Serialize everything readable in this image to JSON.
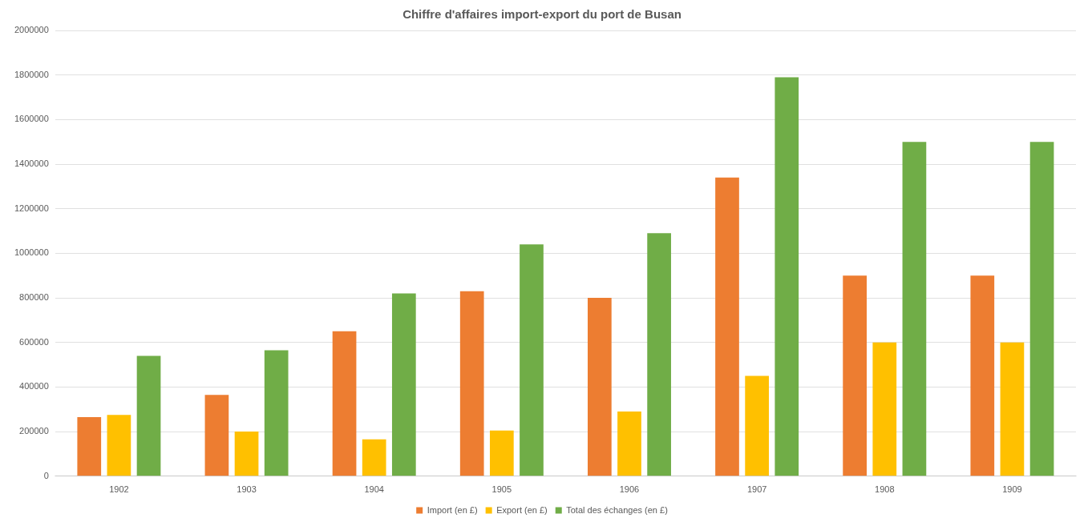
{
  "chart_data": {
    "type": "bar",
    "title": "Chiffre d'affaires import-export du port de Busan",
    "categories": [
      "1902",
      "1903",
      "1904",
      "1905",
      "1906",
      "1907",
      "1908",
      "1909"
    ],
    "series": [
      {
        "name": "Import (en £)",
        "color": "#ed7d31",
        "values": [
          265000,
          365000,
          650000,
          830000,
          800000,
          1340000,
          900000,
          900000
        ]
      },
      {
        "name": "Export (en £)",
        "color": "#ffc000",
        "values": [
          275000,
          200000,
          165000,
          205000,
          290000,
          450000,
          600000,
          600000
        ]
      },
      {
        "name": "Total des échanges (en £)",
        "color": "#70ad47",
        "values": [
          540000,
          565000,
          820000,
          1040000,
          1090000,
          1790000,
          1500000,
          1500000
        ]
      }
    ],
    "ylim": [
      0,
      2000000
    ],
    "yticks": [
      0,
      200000,
      400000,
      600000,
      800000,
      1000000,
      1200000,
      1400000,
      1600000,
      1800000,
      2000000
    ],
    "grid": "y",
    "legend": "bottom"
  }
}
